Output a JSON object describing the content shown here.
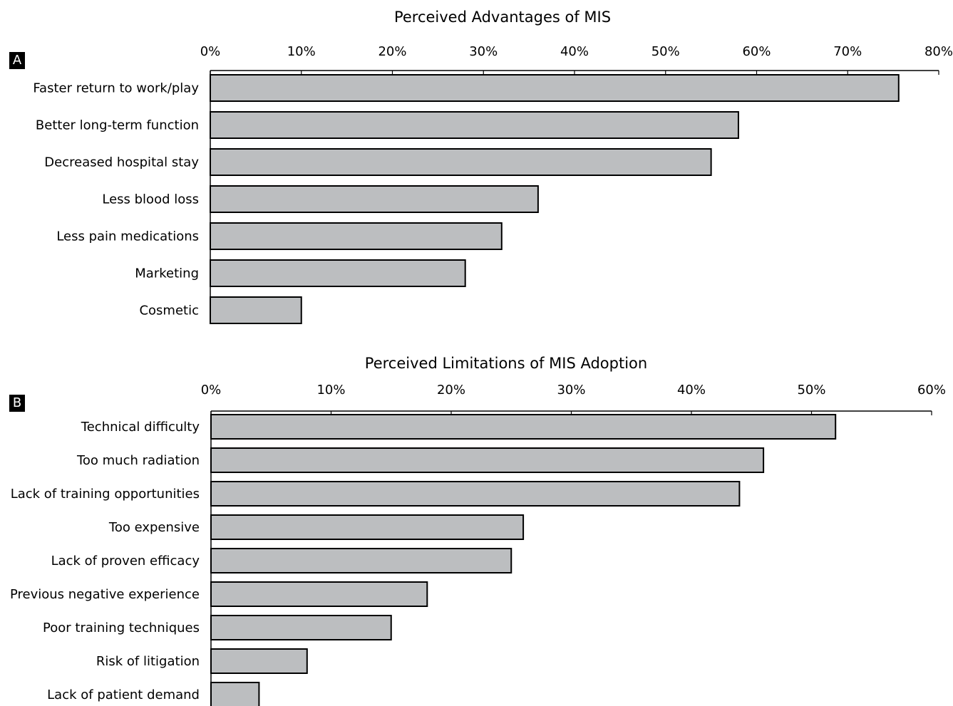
{
  "chart_data": [
    {
      "panel": "A",
      "type": "bar",
      "orientation": "horizontal",
      "title": "Perceived Advantages of MIS",
      "categories": [
        "Faster return to work/play",
        "Better long-term function",
        "Decreased hospital stay",
        "Less blood loss",
        "Less pain medications",
        "Marketing",
        "Cosmetic"
      ],
      "values": [
        75.6,
        58.0,
        55.0,
        36.0,
        32.0,
        28.0,
        10.0
      ],
      "xlim": [
        0,
        80
      ],
      "ticks": [
        "0%",
        "10%",
        "20%",
        "30%",
        "40%",
        "50%",
        "60%",
        "70%",
        "80%"
      ],
      "tick_values": [
        0,
        10,
        20,
        30,
        40,
        50,
        60,
        70,
        80
      ],
      "axis_position": "top",
      "bar_color": "#bcbec0",
      "grid": false
    },
    {
      "panel": "B",
      "type": "bar",
      "orientation": "horizontal",
      "title": "Perceived Limitations of MIS Adoption",
      "categories": [
        "Technical difficulty",
        "Too much radiation",
        "Lack of training opportunities",
        "Too expensive",
        "Lack of proven efficacy",
        "Previous negative experience",
        "Poor training techniques",
        "Risk of litigation",
        "Lack of patient demand"
      ],
      "values": [
        52.0,
        46.0,
        44.0,
        26.0,
        25.0,
        18.0,
        15.0,
        8.0,
        4.0
      ],
      "xlim": [
        0,
        60
      ],
      "ticks": [
        "0%",
        "10%",
        "20%",
        "30%",
        "40%",
        "50%",
        "60%"
      ],
      "tick_values": [
        0,
        10,
        20,
        30,
        40,
        50,
        60
      ],
      "axis_position": "top",
      "bar_color": "#bcbec0",
      "grid": false
    }
  ]
}
